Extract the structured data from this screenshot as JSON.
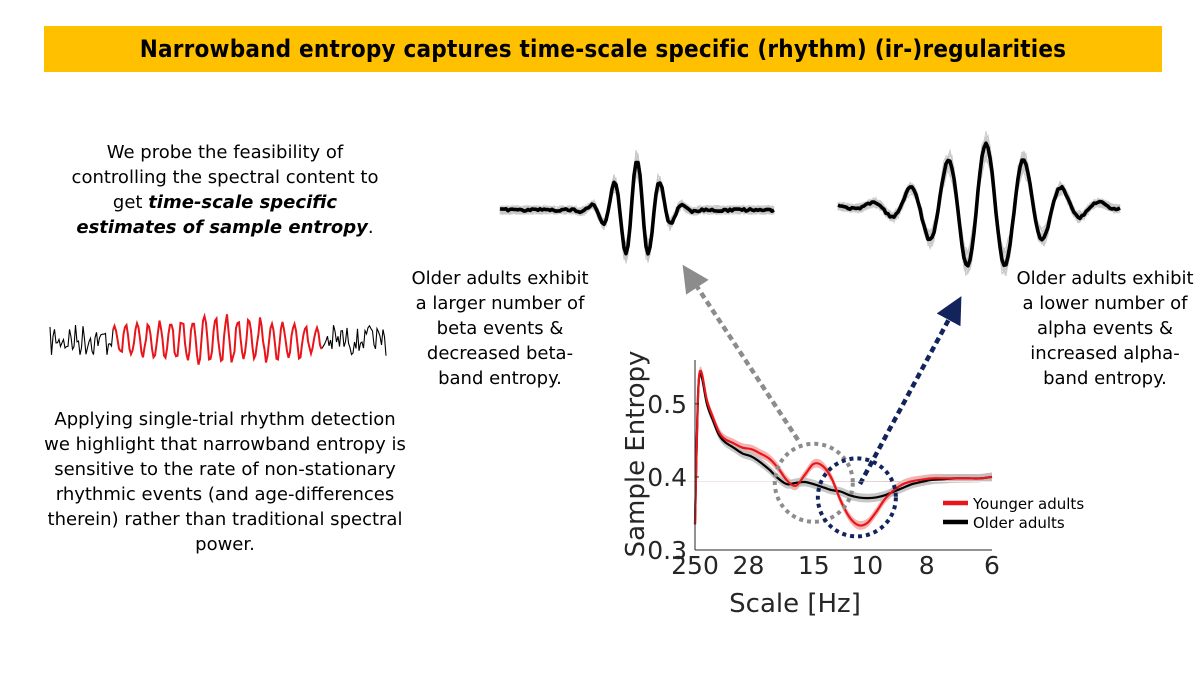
{
  "title": "Narrowband entropy captures time-scale specific (rhythm) (ir-)regularities",
  "intro": {
    "part1": "We probe the feasibility of controlling the spectral content to get",
    "emphasis": "time-scale specific estimates of sample entropy",
    "end": "."
  },
  "applying_text": "Applying single-trial rhythm detection we highlight that narrowband entropy is sensitive to the rate of non-stationary rhythmic events (and age-differences therein) rather than traditional spectral power.",
  "beta_annotation": "Older adults exhibit a larger number of beta events & decreased beta-band entropy.",
  "alpha_annotation": "Older adults exhibit a lower number of alpha events & increased alpha-band entropy.",
  "colors": {
    "banner": "#FFC000",
    "young": "#E8161B",
    "young_band": "#F4A3A3",
    "older": "#000000",
    "older_band": "#BDBDBD",
    "gray_arrow": "#8C8C8C",
    "navy_arrow": "#13245C",
    "trace_gray": "#C8C8C8"
  },
  "chart_data": {
    "type": "line",
    "xlabel": "Scale [Hz]",
    "ylabel": "Sample Entropy",
    "x_ticks": [
      "250",
      "28",
      "15",
      "10",
      "8",
      "6"
    ],
    "y_ticks": [
      0.3,
      0.4,
      0.5
    ],
    "ylim": [
      0.3,
      0.56
    ],
    "x_range_index": [
      0,
      100
    ],
    "legend_position": "right",
    "series": [
      {
        "name": "Younger adults",
        "x": [
          0,
          1,
          2,
          4,
          6,
          8,
          10,
          13,
          16,
          19,
          22,
          25,
          28,
          31,
          34,
          37,
          40,
          43,
          46,
          49,
          52,
          55,
          58,
          61,
          64,
          67,
          70,
          73,
          76,
          80,
          84,
          88,
          92,
          96,
          100
        ],
        "y": [
          0.335,
          0.51,
          0.545,
          0.505,
          0.482,
          0.462,
          0.452,
          0.446,
          0.44,
          0.438,
          0.432,
          0.425,
          0.412,
          0.395,
          0.388,
          0.403,
          0.418,
          0.415,
          0.398,
          0.368,
          0.345,
          0.334,
          0.337,
          0.352,
          0.37,
          0.382,
          0.39,
          0.394,
          0.396,
          0.398,
          0.398,
          0.398,
          0.398,
          0.398,
          0.4
        ]
      },
      {
        "name": "Older adults",
        "x": [
          0,
          1,
          2,
          4,
          6,
          8,
          10,
          13,
          16,
          19,
          22,
          25,
          28,
          31,
          34,
          37,
          40,
          43,
          46,
          49,
          52,
          55,
          58,
          61,
          64,
          67,
          70,
          73,
          76,
          80,
          84,
          88,
          92,
          96,
          100
        ],
        "y": [
          0.335,
          0.51,
          0.54,
          0.5,
          0.478,
          0.458,
          0.448,
          0.44,
          0.432,
          0.428,
          0.42,
          0.41,
          0.398,
          0.39,
          0.392,
          0.393,
          0.39,
          0.386,
          0.382,
          0.38,
          0.375,
          0.372,
          0.371,
          0.372,
          0.375,
          0.38,
          0.385,
          0.39,
          0.393,
          0.396,
          0.397,
          0.398,
          0.398,
          0.398,
          0.4
        ]
      }
    ]
  }
}
